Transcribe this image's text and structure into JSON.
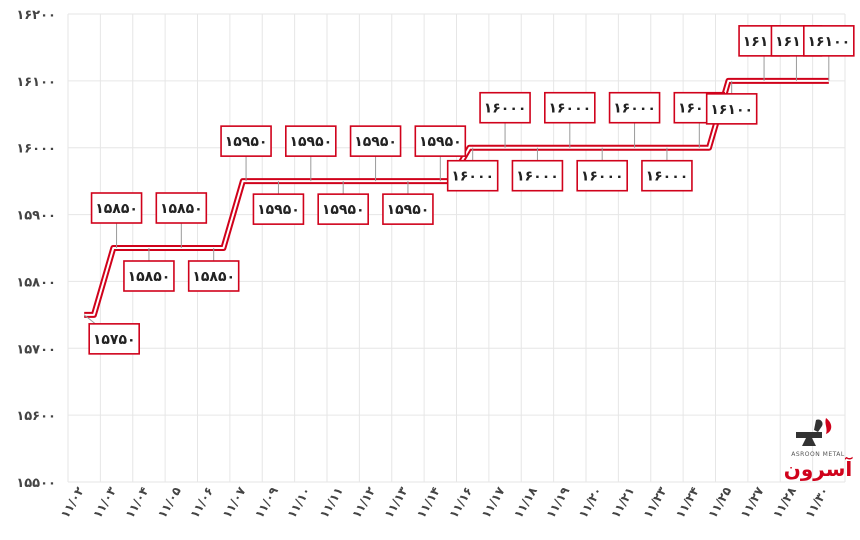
{
  "chart_data": {
    "type": "line",
    "categories": [
      "۱۱/۰۲",
      "۱۱/۰۳",
      "۱۱/۰۴",
      "۱۱/۰۵",
      "۱۱/۰۶",
      "۱۱/۰۷",
      "۱۱/۰۹",
      "۱۱/۱۰",
      "۱۱/۱۱",
      "۱۱/۱۲",
      "۱۱/۱۳",
      "۱۱/۱۴",
      "۱۱/۱۶",
      "۱۱/۱۷",
      "۱۱/۱۸",
      "۱۱/۱۹",
      "۱۱/۲۰",
      "۱۱/۲۱",
      "۱۱/۲۳",
      "۱۱/۲۴",
      "۱۱/۲۵",
      "۱۱/۲۷",
      "۱۱/۲۸",
      "۱۱/۳۰"
    ],
    "values": [
      15750,
      15850,
      15850,
      15850,
      15850,
      15950,
      15950,
      15950,
      15950,
      15950,
      15950,
      15950,
      16000,
      16000,
      16000,
      16000,
      16000,
      16000,
      16000,
      16000,
      16100,
      16100,
      16100,
      16100
    ],
    "data_labels": [
      "۱۵۷۵۰",
      "۱۵۸۵۰",
      "۱۵۸۵۰",
      "۱۵۸۵۰",
      "۱۵۸۵۰",
      "۱۵۹۵۰",
      "۱۵۹۵۰",
      "۱۵۹۵۰",
      "۱۵۹۵۰",
      "۱۵۹۵۰",
      "۱۵۹۵۰",
      "۱۵۹۵۰",
      "۱۶۰۰۰",
      "۱۶۰۰۰",
      "۱۶۰۰۰",
      "۱۶۰۰۰",
      "۱۶۰۰۰",
      "۱۶۰۰۰",
      "۱۶۰۰۰",
      "۱۶۰۰۰",
      "۱۶۱۰۰",
      "۱۶۱۰۰",
      "۱۶۱۰۰",
      "۱۶۱۰۰"
    ],
    "ylim": [
      15500,
      16200
    ],
    "yticks": [
      15500,
      15600,
      15700,
      15800,
      15900,
      16000,
      16100,
      16200
    ],
    "ytick_labels": [
      "۱۵۵۰۰",
      "۱۵۶۰۰",
      "۱۵۷۰۰",
      "۱۵۸۰۰",
      "۱۵۹۰۰",
      "۱۶۰۰۰",
      "۱۶۱۰۰",
      "۱۶۲۰۰"
    ],
    "title": "",
    "xlabel": "",
    "ylabel": "",
    "grid": true,
    "legend": "none",
    "line_style": "stepped",
    "colors": {
      "line": "#d0021b",
      "label_border": "#d0021b",
      "grid": "#e6e6e6",
      "leader": "#9a9a9a"
    }
  },
  "logo": {
    "text": "آسرون",
    "subtitle": "ASROON METAL"
  }
}
